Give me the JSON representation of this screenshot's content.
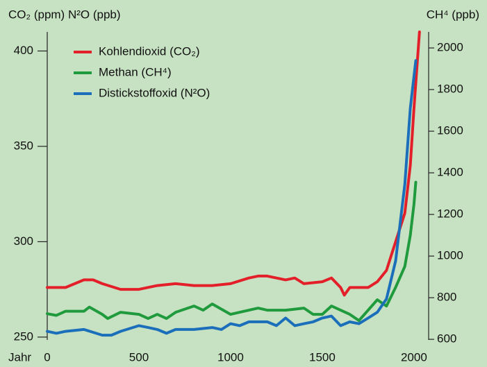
{
  "chart_data": {
    "type": "line",
    "y_label": "CO₂ (ppm) N²O (ppb)",
    "y2_label": "CH⁴ (ppb)",
    "x_label": "Jahr",
    "xlim": [
      0,
      2080
    ],
    "xticks": [
      0,
      500,
      1000,
      1500,
      2000
    ],
    "ylim": [
      248.5,
      410
    ],
    "yticks": [
      250,
      300,
      350,
      400
    ],
    "y2lim": [
      597,
      2077
    ],
    "y2ticks": [
      600,
      800,
      1000,
      1200,
      1400,
      1600,
      1800,
      2000
    ],
    "legend": "upper-left",
    "series": [
      {
        "name": "Kohlendioxid (CO₂)",
        "color": "#e3202a",
        "axis": "y",
        "x": [
          0,
          100,
          200,
          250,
          300,
          400,
          500,
          600,
          700,
          800,
          900,
          1000,
          1100,
          1150,
          1200,
          1300,
          1350,
          1400,
          1500,
          1550,
          1600,
          1620,
          1650,
          1700,
          1750,
          1800,
          1850,
          1900,
          1950,
          1980,
          2000,
          2030
        ],
        "values": [
          276,
          276,
          280,
          280,
          278,
          275,
          275,
          277,
          278,
          277,
          277,
          278,
          281,
          282,
          282,
          280,
          281,
          278,
          279,
          281,
          276,
          272,
          276,
          276,
          276,
          279,
          285,
          300,
          315,
          340,
          370,
          410
        ]
      },
      {
        "name": "Methan (CH⁴)",
        "color": "#1f9a3c",
        "axis": "y2",
        "x": [
          0,
          50,
          100,
          200,
          230,
          300,
          330,
          400,
          500,
          550,
          600,
          650,
          700,
          800,
          850,
          900,
          1000,
          1100,
          1150,
          1200,
          1300,
          1400,
          1450,
          1500,
          1550,
          1600,
          1650,
          1700,
          1750,
          1800,
          1850,
          1900,
          1950,
          1980,
          2000,
          2010
        ],
        "values": [
          723,
          715,
          735,
          735,
          755,
          720,
          700,
          730,
          720,
          700,
          720,
          700,
          730,
          760,
          740,
          770,
          720,
          740,
          750,
          740,
          740,
          750,
          720,
          720,
          760,
          740,
          720,
          690,
          740,
          790,
          760,
          850,
          950,
          1100,
          1250,
          1355
        ]
      },
      {
        "name": "Distickstoffoxid (N²O)",
        "color": "#1b6fba",
        "axis": "y",
        "x": [
          0,
          50,
          100,
          200,
          300,
          350,
          400,
          500,
          550,
          600,
          650,
          700,
          800,
          900,
          950,
          1000,
          1050,
          1100,
          1200,
          1250,
          1300,
          1350,
          1400,
          1450,
          1500,
          1550,
          1600,
          1650,
          1700,
          1750,
          1800,
          1850,
          1900,
          1950,
          1980,
          2010
        ],
        "values": [
          253,
          252,
          253,
          254,
          251,
          251,
          253,
          256,
          255,
          254,
          252,
          254,
          254,
          255,
          254,
          257,
          256,
          258,
          258,
          256,
          260,
          256,
          257,
          258,
          260,
          261,
          256,
          258,
          257,
          260,
          263,
          270,
          290,
          330,
          370,
          395
        ]
      }
    ]
  }
}
